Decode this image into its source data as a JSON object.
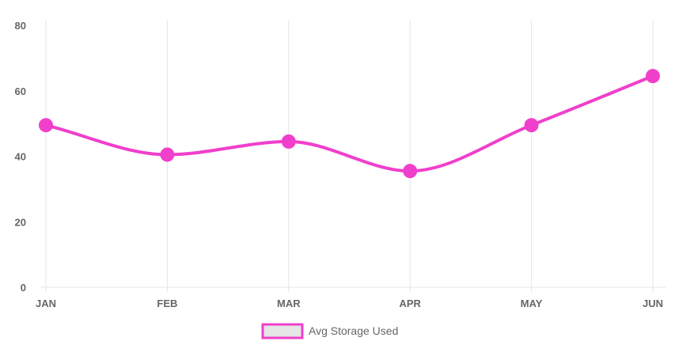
{
  "chart_data": {
    "type": "line",
    "categories": [
      "JAN",
      "FEB",
      "MAR",
      "APR",
      "MAY",
      "JUN"
    ],
    "series": [
      {
        "name": "Avg Storage Used",
        "values": [
          49.5,
          40.5,
          44.5,
          35.5,
          49.5,
          64.5
        ],
        "color": "#f03fcb"
      }
    ],
    "ylim": [
      0,
      80
    ],
    "yticks": [
      "0",
      "20",
      "40",
      "60",
      "80"
    ],
    "grid": "vertical",
    "legend_position": "bottom",
    "legend_fill": "#e6e6e6"
  }
}
